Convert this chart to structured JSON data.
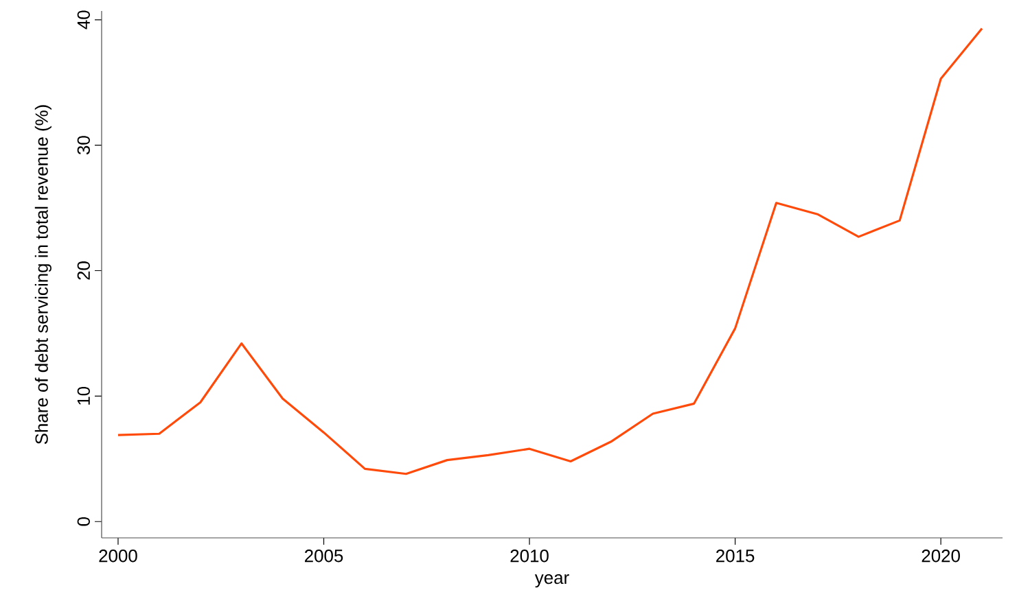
{
  "chart_data": {
    "type": "line",
    "xlabel": "year",
    "ylabel": "Share of debt servicing in total revenue (%)",
    "x": [
      2000,
      2001,
      2002,
      2003,
      2004,
      2005,
      2006,
      2007,
      2008,
      2009,
      2010,
      2011,
      2012,
      2013,
      2014,
      2015,
      2016,
      2017,
      2018,
      2019,
      2020,
      2021
    ],
    "series": [
      {
        "color": "#ff4a0a",
        "values": [
          6.9,
          7.0,
          9.5,
          14.2,
          9.8,
          7.1,
          4.2,
          3.8,
          4.9,
          5.3,
          5.8,
          4.8,
          6.4,
          8.6,
          9.4,
          15.4,
          25.4,
          24.5,
          22.7,
          24.0,
          35.3,
          39.3
        ]
      }
    ],
    "xlim": [
      1999.6,
      2021.5
    ],
    "ylim": [
      -1.3,
      40.7
    ],
    "xticks": [
      2000,
      2005,
      2010,
      2015,
      2020
    ],
    "yticks": [
      0,
      10,
      20,
      30,
      40
    ],
    "grid": false,
    "marker": "none",
    "line_style": "solid"
  }
}
